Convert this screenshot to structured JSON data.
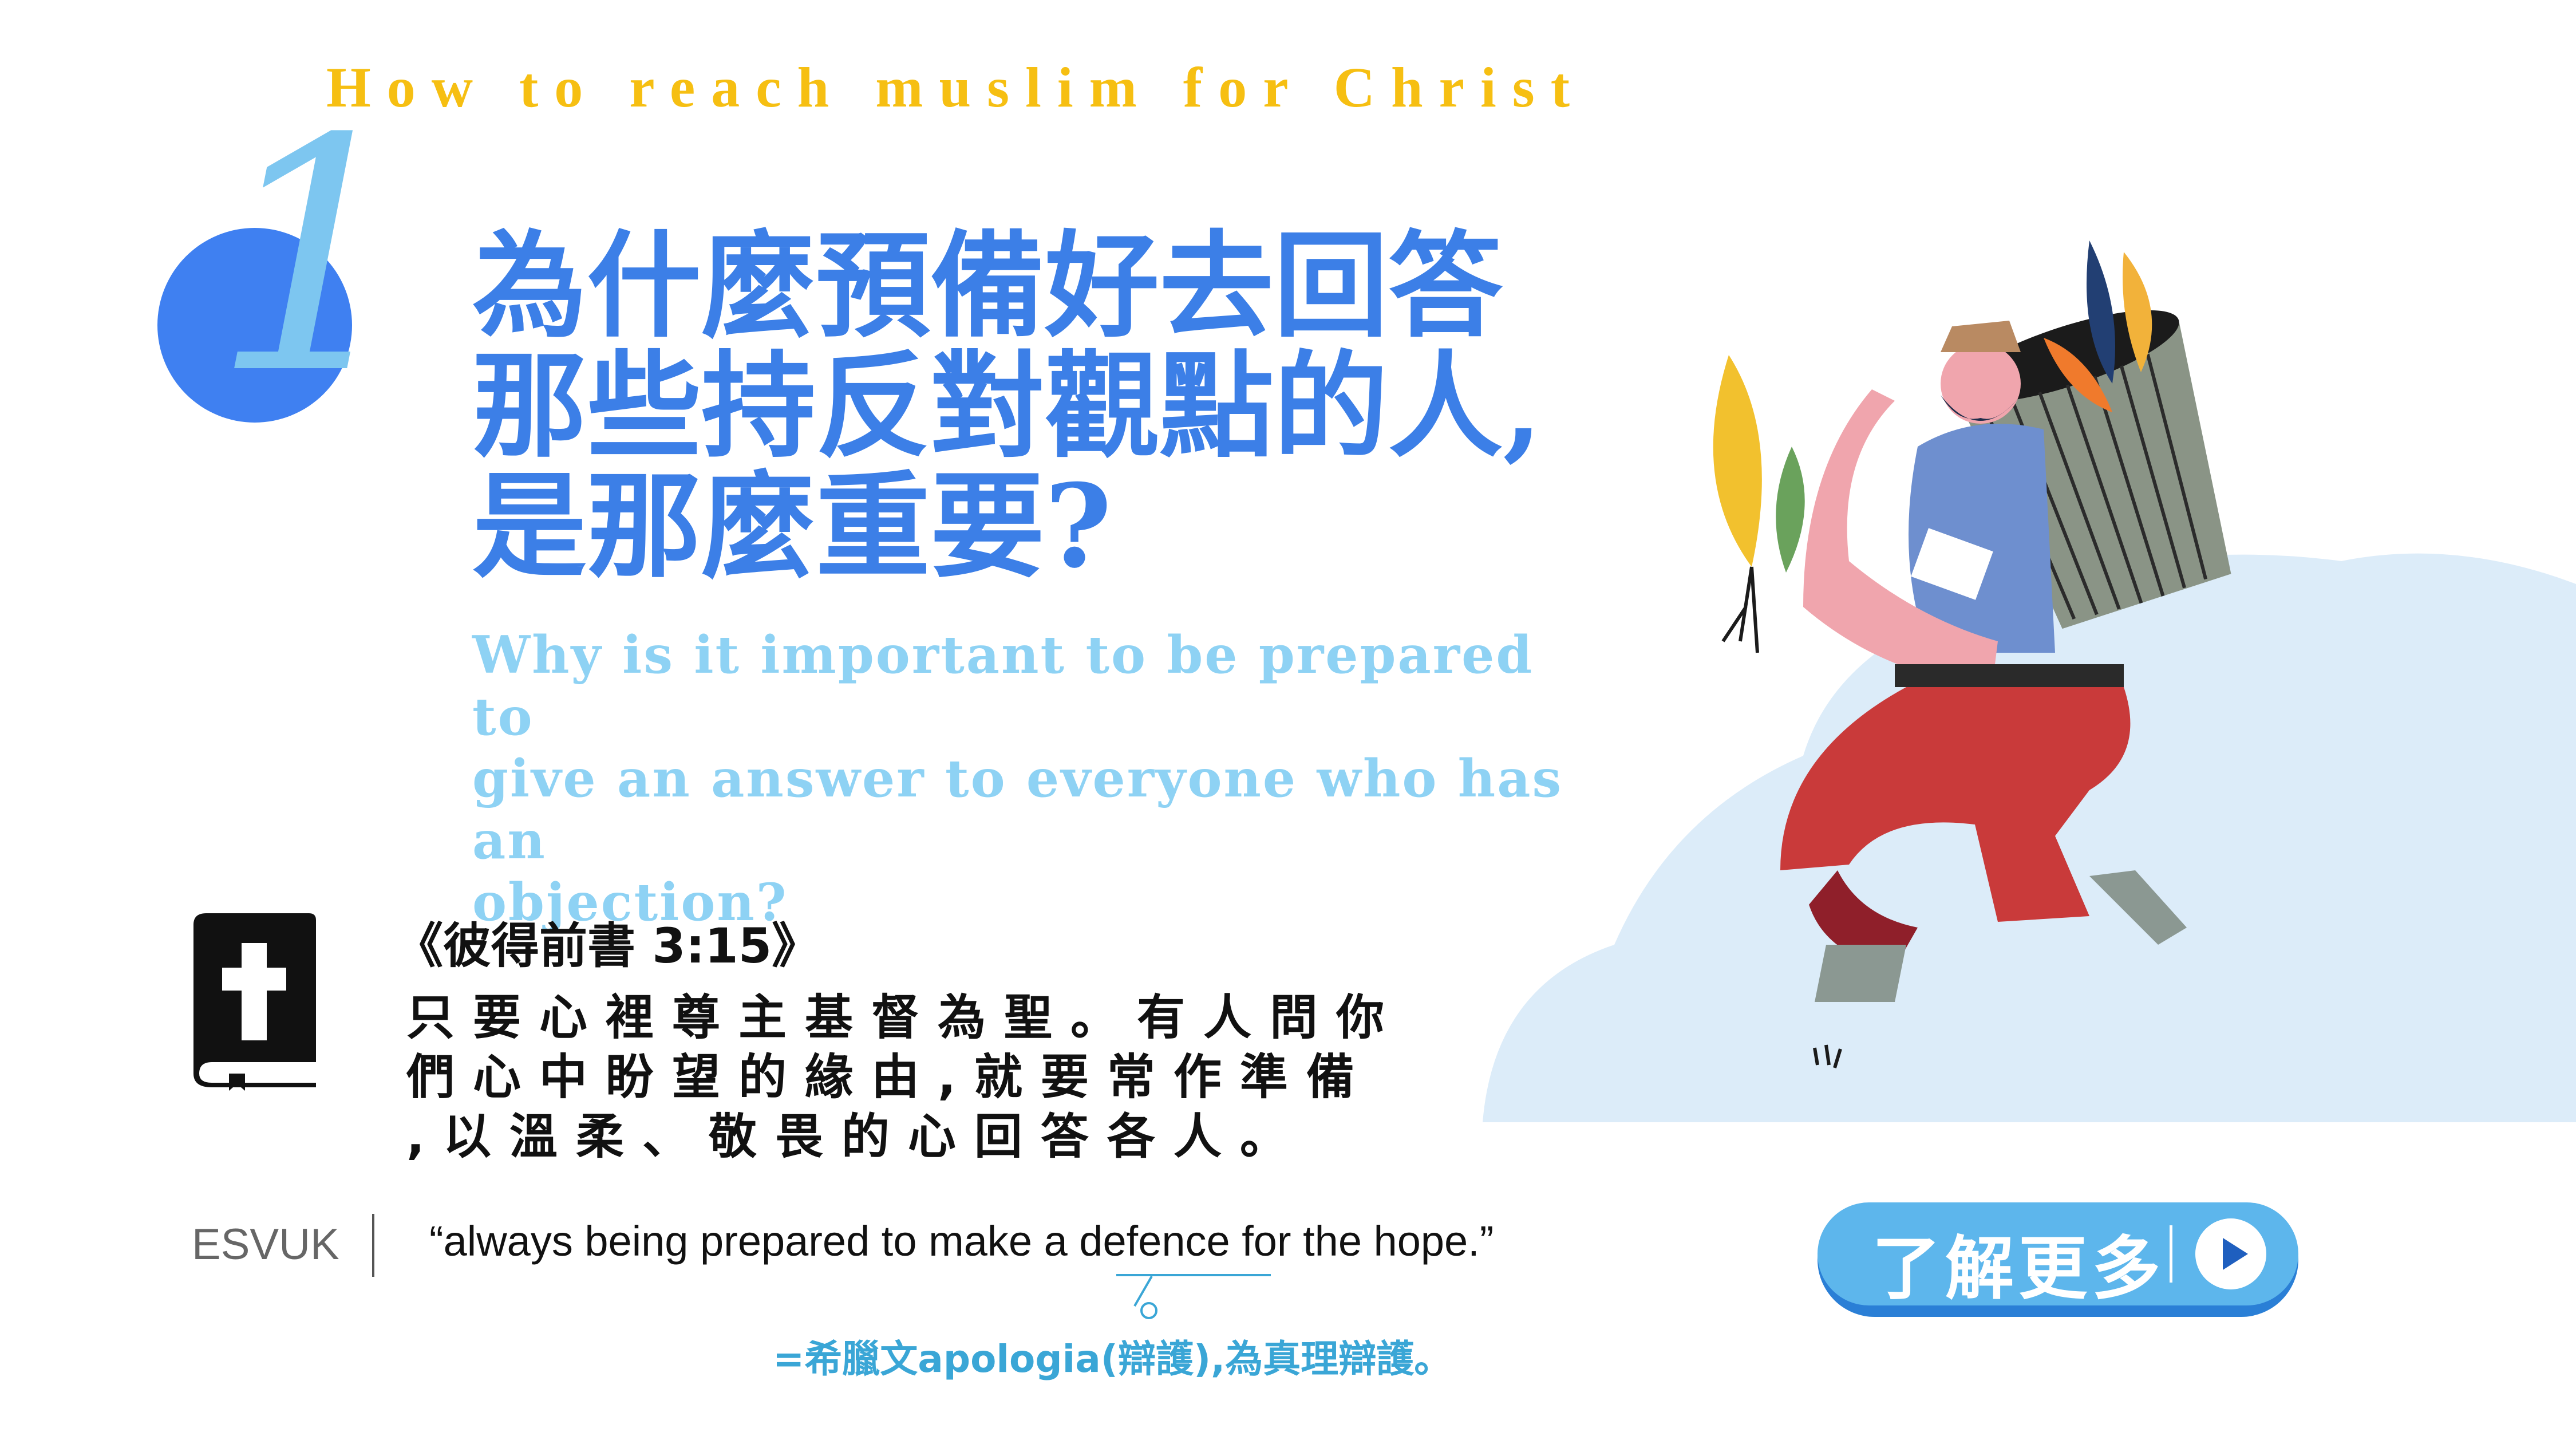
{
  "header": {
    "title": "How to reach muslim for Christ"
  },
  "badge": {
    "number": "1"
  },
  "question": {
    "zh_lines": [
      "為什麼預備好去回答",
      "那些持反對觀點的人,",
      "是那麼重要?"
    ],
    "en_lines": [
      "Why is it important to be prepared to",
      "give an answer to everyone who has an",
      "objection?"
    ]
  },
  "scripture": {
    "icon": "bible-icon",
    "reference": "《彼得前書 3:15》",
    "verse_lines": [
      "只要心裡尊主基督為聖。有人問你",
      "們心中盼望的緣由,就要常作準備",
      ",以溫柔、敬畏的心回答各人。"
    ]
  },
  "translation": {
    "version": "ESVUK",
    "quote": "“always being prepared to make a defence for the hope.”",
    "note": "=希臘文apologia(辯護),為真理辯護。"
  },
  "cta": {
    "label": "了解更多",
    "icon": "play-icon"
  },
  "colors": {
    "accent_yellow": "#f6bf12",
    "primary_blue": "#3c7fe7",
    "light_blue": "#8ed2f4",
    "button_blue": "#5db6ec"
  }
}
